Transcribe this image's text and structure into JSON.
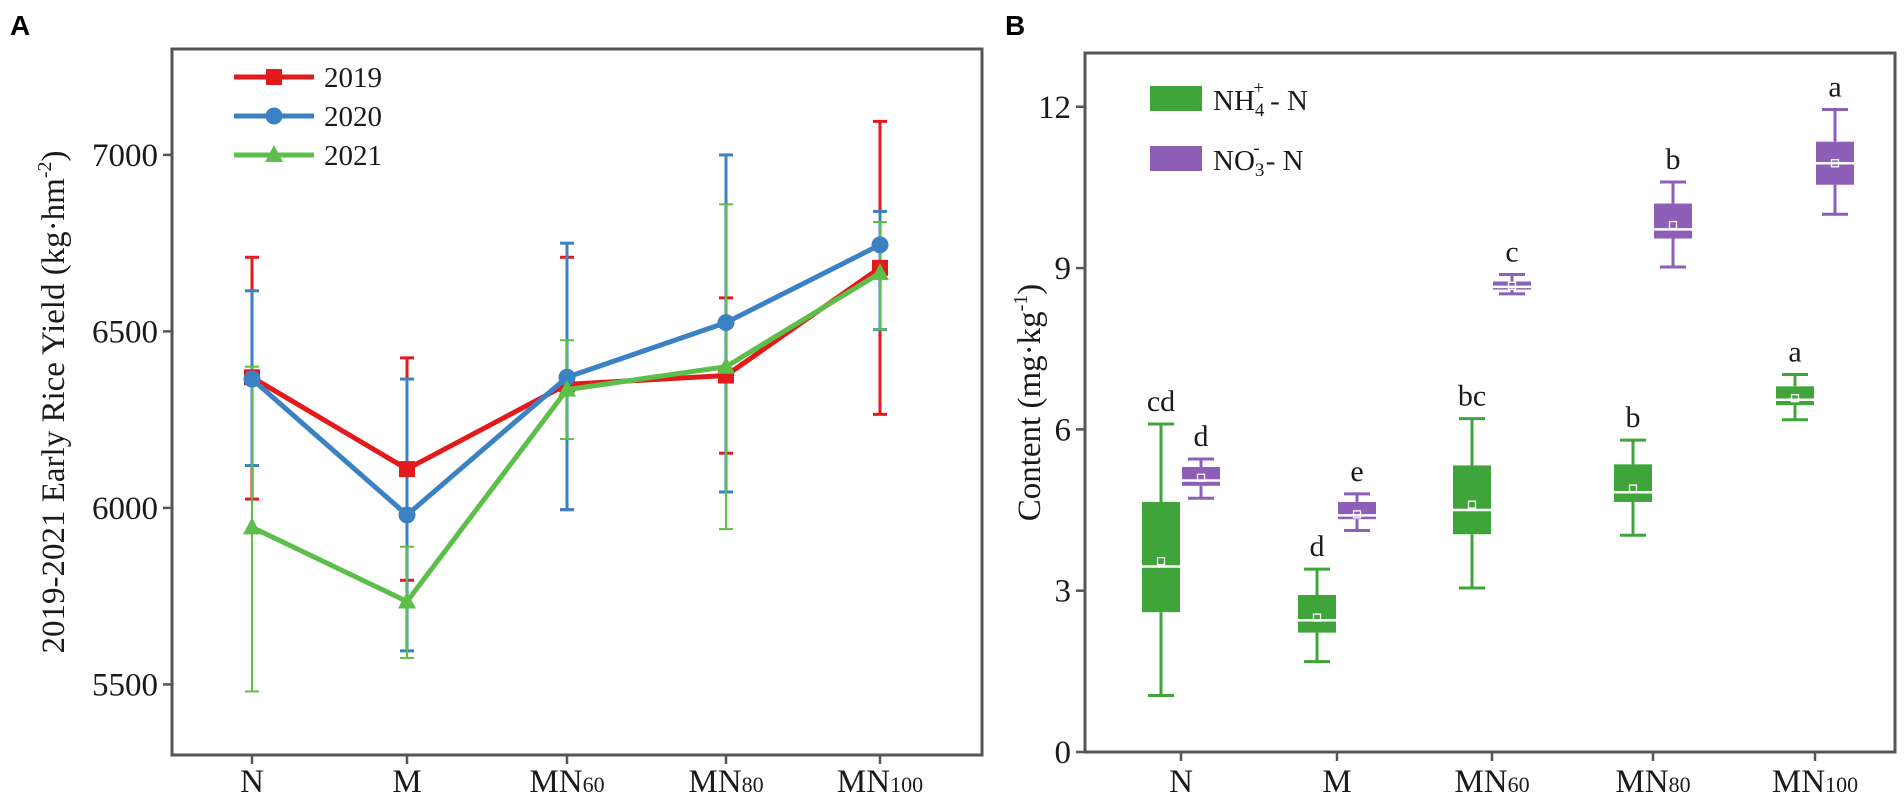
{
  "figure": {
    "colors": {
      "frame": "#555555",
      "red": "#e31a1c",
      "blue": "#3b82c4",
      "green": "#5cbf4a",
      "box_green": "#3fa53a",
      "box_purple": "#8e5fb7"
    }
  },
  "chart_data": [
    {
      "panel": "A",
      "type": "line",
      "title": "",
      "xlabel": "",
      "ylabel": "2019-2021 Early Rice Yield (kg·hm-2)",
      "ylabel_main": "2019-2021 Early Rice Yield (kg·hm",
      "ylabel_sup": "-2",
      "ylabel_end": ")",
      "categories": [
        {
          "base": "N",
          "sub": ""
        },
        {
          "base": "M",
          "sub": ""
        },
        {
          "base": "MN",
          "sub": "60"
        },
        {
          "base": "MN",
          "sub": "80"
        },
        {
          "base": "MN",
          "sub": "100"
        }
      ],
      "ylim": [
        5300,
        7300
      ],
      "yticks": [
        5500,
        6000,
        6500,
        7000
      ],
      "legend_position": "top-left",
      "series": [
        {
          "name": "2019",
          "marker": "square",
          "color": "#e31a1c",
          "values": [
            6370,
            6110,
            6350,
            6375,
            6680
          ],
          "err_low": [
            6025,
            5795,
            5995,
            6155,
            6265
          ],
          "err_high": [
            6710,
            6425,
            6710,
            6595,
            7095
          ]
        },
        {
          "name": "2020",
          "marker": "circle",
          "color": "#3b82c4",
          "values": [
            6365,
            5980,
            6370,
            6525,
            6745
          ],
          "err_low": [
            6120,
            5595,
            5995,
            6045,
            6505
          ],
          "err_high": [
            6615,
            6365,
            6750,
            7000,
            6840
          ]
        },
        {
          "name": "2021",
          "marker": "triangle",
          "color": "#5cbf4a",
          "values": [
            5945,
            5735,
            6335,
            6400,
            6665
          ],
          "err_low": [
            5480,
            5575,
            6195,
            5940,
            6505
          ],
          "err_high": [
            6400,
            5890,
            6475,
            6860,
            6810
          ]
        }
      ]
    },
    {
      "panel": "B",
      "type": "box",
      "title": "",
      "xlabel": "",
      "ylabel": "Content (mg·kg-1)",
      "ylabel_main": "Content (mg·kg",
      "ylabel_sup": "-1",
      "ylabel_end": ")",
      "categories": [
        {
          "base": "N",
          "sub": ""
        },
        {
          "base": "M",
          "sub": ""
        },
        {
          "base": "MN",
          "sub": "60"
        },
        {
          "base": "MN",
          "sub": "80"
        },
        {
          "base": "MN",
          "sub": "100"
        }
      ],
      "ylim": [
        0,
        13
      ],
      "yticks": [
        0,
        3,
        6,
        9,
        12
      ],
      "legend_position": "top-left",
      "series": [
        {
          "name": "NH4+-N",
          "label_base": "NH",
          "label_sub": "4",
          "label_sup": "+",
          "label_end": "- N",
          "color": "#3fa53a",
          "boxes": [
            {
              "min": 1.05,
              "q1": 2.6,
              "median": 3.45,
              "mean": 3.55,
              "q3": 4.65,
              "max": 6.1,
              "letter": "cd"
            },
            {
              "min": 1.68,
              "q1": 2.22,
              "median": 2.45,
              "mean": 2.5,
              "q3": 2.92,
              "max": 3.4,
              "letter": "d"
            },
            {
              "min": 3.05,
              "q1": 4.05,
              "median": 4.5,
              "mean": 4.6,
              "q3": 5.33,
              "max": 6.2,
              "letter": "bc"
            },
            {
              "min": 4.03,
              "q1": 4.65,
              "median": 4.83,
              "mean": 4.9,
              "q3": 5.35,
              "max": 5.8,
              "letter": "b"
            },
            {
              "min": 6.18,
              "q1": 6.45,
              "median": 6.55,
              "mean": 6.58,
              "q3": 6.8,
              "max": 7.02,
              "letter": "a"
            }
          ]
        },
        {
          "name": "NO3--N",
          "label_base": "NO",
          "label_sub": "3",
          "label_sup": "-",
          "label_end": "- N",
          "color": "#8e5fb7",
          "boxes": [
            {
              "min": 4.72,
              "q1": 4.95,
              "median": 5.05,
              "mean": 5.1,
              "q3": 5.3,
              "max": 5.45,
              "letter": "d"
            },
            {
              "min": 4.12,
              "q1": 4.33,
              "median": 4.4,
              "mean": 4.42,
              "q3": 4.65,
              "max": 4.8,
              "letter": "e"
            },
            {
              "min": 8.52,
              "q1": 8.6,
              "median": 8.65,
              "mean": 8.67,
              "q3": 8.75,
              "max": 8.88,
              "letter": "c"
            },
            {
              "min": 9.02,
              "q1": 9.55,
              "median": 9.72,
              "mean": 9.8,
              "q3": 10.2,
              "max": 10.6,
              "letter": "b"
            },
            {
              "min": 10.0,
              "q1": 10.55,
              "median": 10.95,
              "mean": 10.95,
              "q3": 11.35,
              "max": 11.95,
              "letter": "a"
            }
          ]
        }
      ]
    }
  ]
}
